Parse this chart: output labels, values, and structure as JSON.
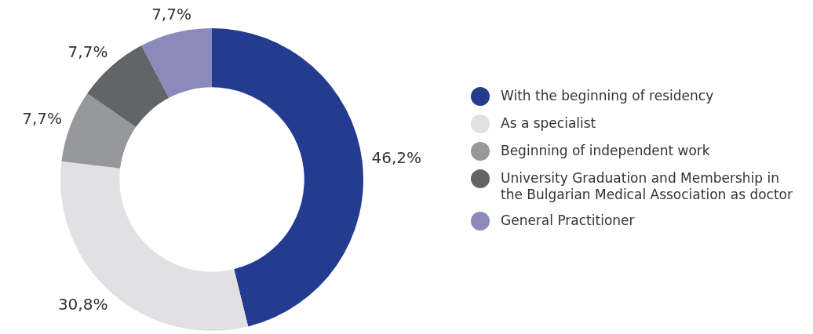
{
  "chart_data": {
    "type": "donut",
    "categories": [
      "With the beginning of residency",
      "As a specialist",
      "Beginning of independent work",
      "University Graduation and Membership in the Bulgarian Medical Association as doctor",
      "General Practitioner"
    ],
    "values": [
      46.2,
      30.8,
      7.7,
      7.7,
      7.7
    ],
    "value_labels": [
      "46,2%",
      "30,8%",
      "7,7%",
      "7,7%",
      "7,7%"
    ],
    "colors": [
      "#243c8f",
      "#e1e1e3",
      "#97989b",
      "#636466",
      "#8a8abc"
    ],
    "legend": "right"
  }
}
